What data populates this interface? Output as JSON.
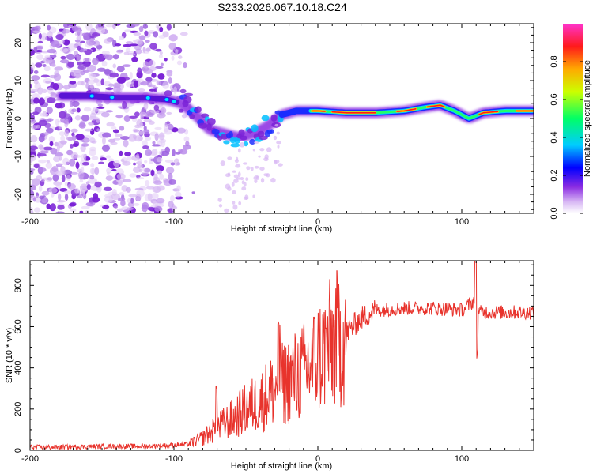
{
  "title": "S233.2026.067.10.18.C24",
  "chart_data": [
    {
      "type": "heatmap",
      "title": "S233.2026.067.10.18.C24",
      "xlabel": "Height of straight line (km)",
      "ylabel": "Frequency (Hz)",
      "xlim": [
        -200,
        150
      ],
      "ylim": [
        -25,
        25
      ],
      "xticks": [
        -200,
        -100,
        0,
        100
      ],
      "yticks": [
        -20,
        -10,
        0,
        10,
        20
      ],
      "ridge": {
        "x": [
          -175,
          -160,
          -140,
          -120,
          -105,
          -95,
          -85,
          -75,
          -65,
          -55,
          -45,
          -35,
          -25,
          -15,
          -5,
          0,
          20,
          40,
          60,
          75,
          85,
          95,
          100,
          105,
          115,
          130,
          150
        ],
        "freq_hz": [
          6,
          6,
          5.5,
          5.5,
          5,
          4,
          1,
          -3,
          -4,
          -5,
          -4,
          -2,
          1,
          2,
          2,
          2,
          1.5,
          1.5,
          2,
          3,
          3.5,
          2,
          1,
          0,
          1.5,
          2,
          2
        ]
      },
      "colorbar": {
        "label": "Normalized spectral amplitude",
        "range": [
          0,
          1
        ],
        "ticks": [
          "0.0",
          "0.2",
          "0.4",
          "0.6",
          "0.8"
        ]
      }
    },
    {
      "type": "line",
      "xlabel": "Height of straight line (km)",
      "ylabel": "SNR (10 * v/v)",
      "xlim": [
        -200,
        150
      ],
      "ylim": [
        0,
        920
      ],
      "xticks": [
        -200,
        -100,
        0,
        100
      ],
      "yticks": [
        0,
        200,
        400,
        600,
        800
      ],
      "series": [
        {
          "name": "SNR",
          "color": "#e8332c",
          "x": [
            -200,
            -180,
            -160,
            -140,
            -120,
            -100,
            -90,
            -80,
            -70,
            -60,
            -50,
            -40,
            -30,
            -20,
            -10,
            0,
            10,
            20,
            30,
            40,
            60,
            80,
            100,
            108,
            110,
            112,
            120,
            140,
            150
          ],
          "y": [
            15,
            15,
            18,
            20,
            20,
            25,
            30,
            60,
            110,
            150,
            200,
            240,
            300,
            340,
            380,
            450,
            520,
            570,
            640,
            680,
            690,
            690,
            680,
            720,
            790,
            670,
            670,
            670,
            670
          ]
        }
      ]
    }
  ]
}
